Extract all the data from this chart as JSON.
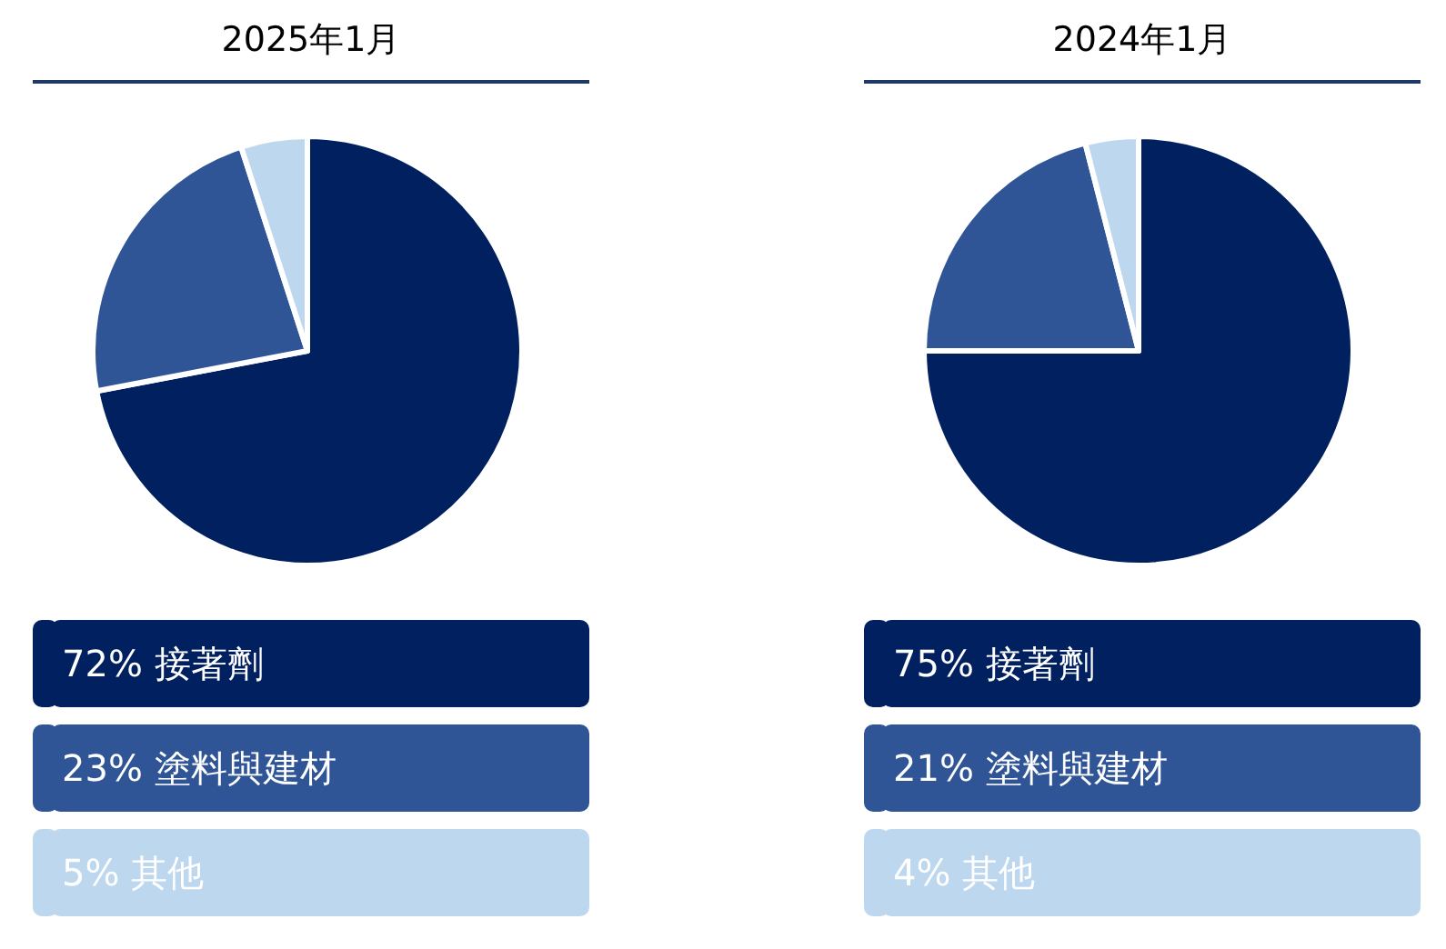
{
  "chart_data": [
    {
      "type": "pie",
      "title": "2025年1月",
      "categories": [
        "接著劑",
        "塗料與建材",
        "其他"
      ],
      "values": [
        72,
        23,
        5
      ],
      "value_labels": [
        "72%",
        "23%",
        "5%"
      ],
      "colors": [
        "#002060",
        "#2f5597",
        "#bdd7ee"
      ],
      "legend": "bottom"
    },
    {
      "type": "pie",
      "title": "2024年1月",
      "categories": [
        "接著劑",
        "塗料與建材",
        "其他"
      ],
      "values": [
        75,
        21,
        4
      ],
      "value_labels": [
        "75%",
        "21%",
        "4%"
      ],
      "colors": [
        "#002060",
        "#2f5597",
        "#bdd7ee"
      ],
      "legend": "bottom"
    }
  ]
}
